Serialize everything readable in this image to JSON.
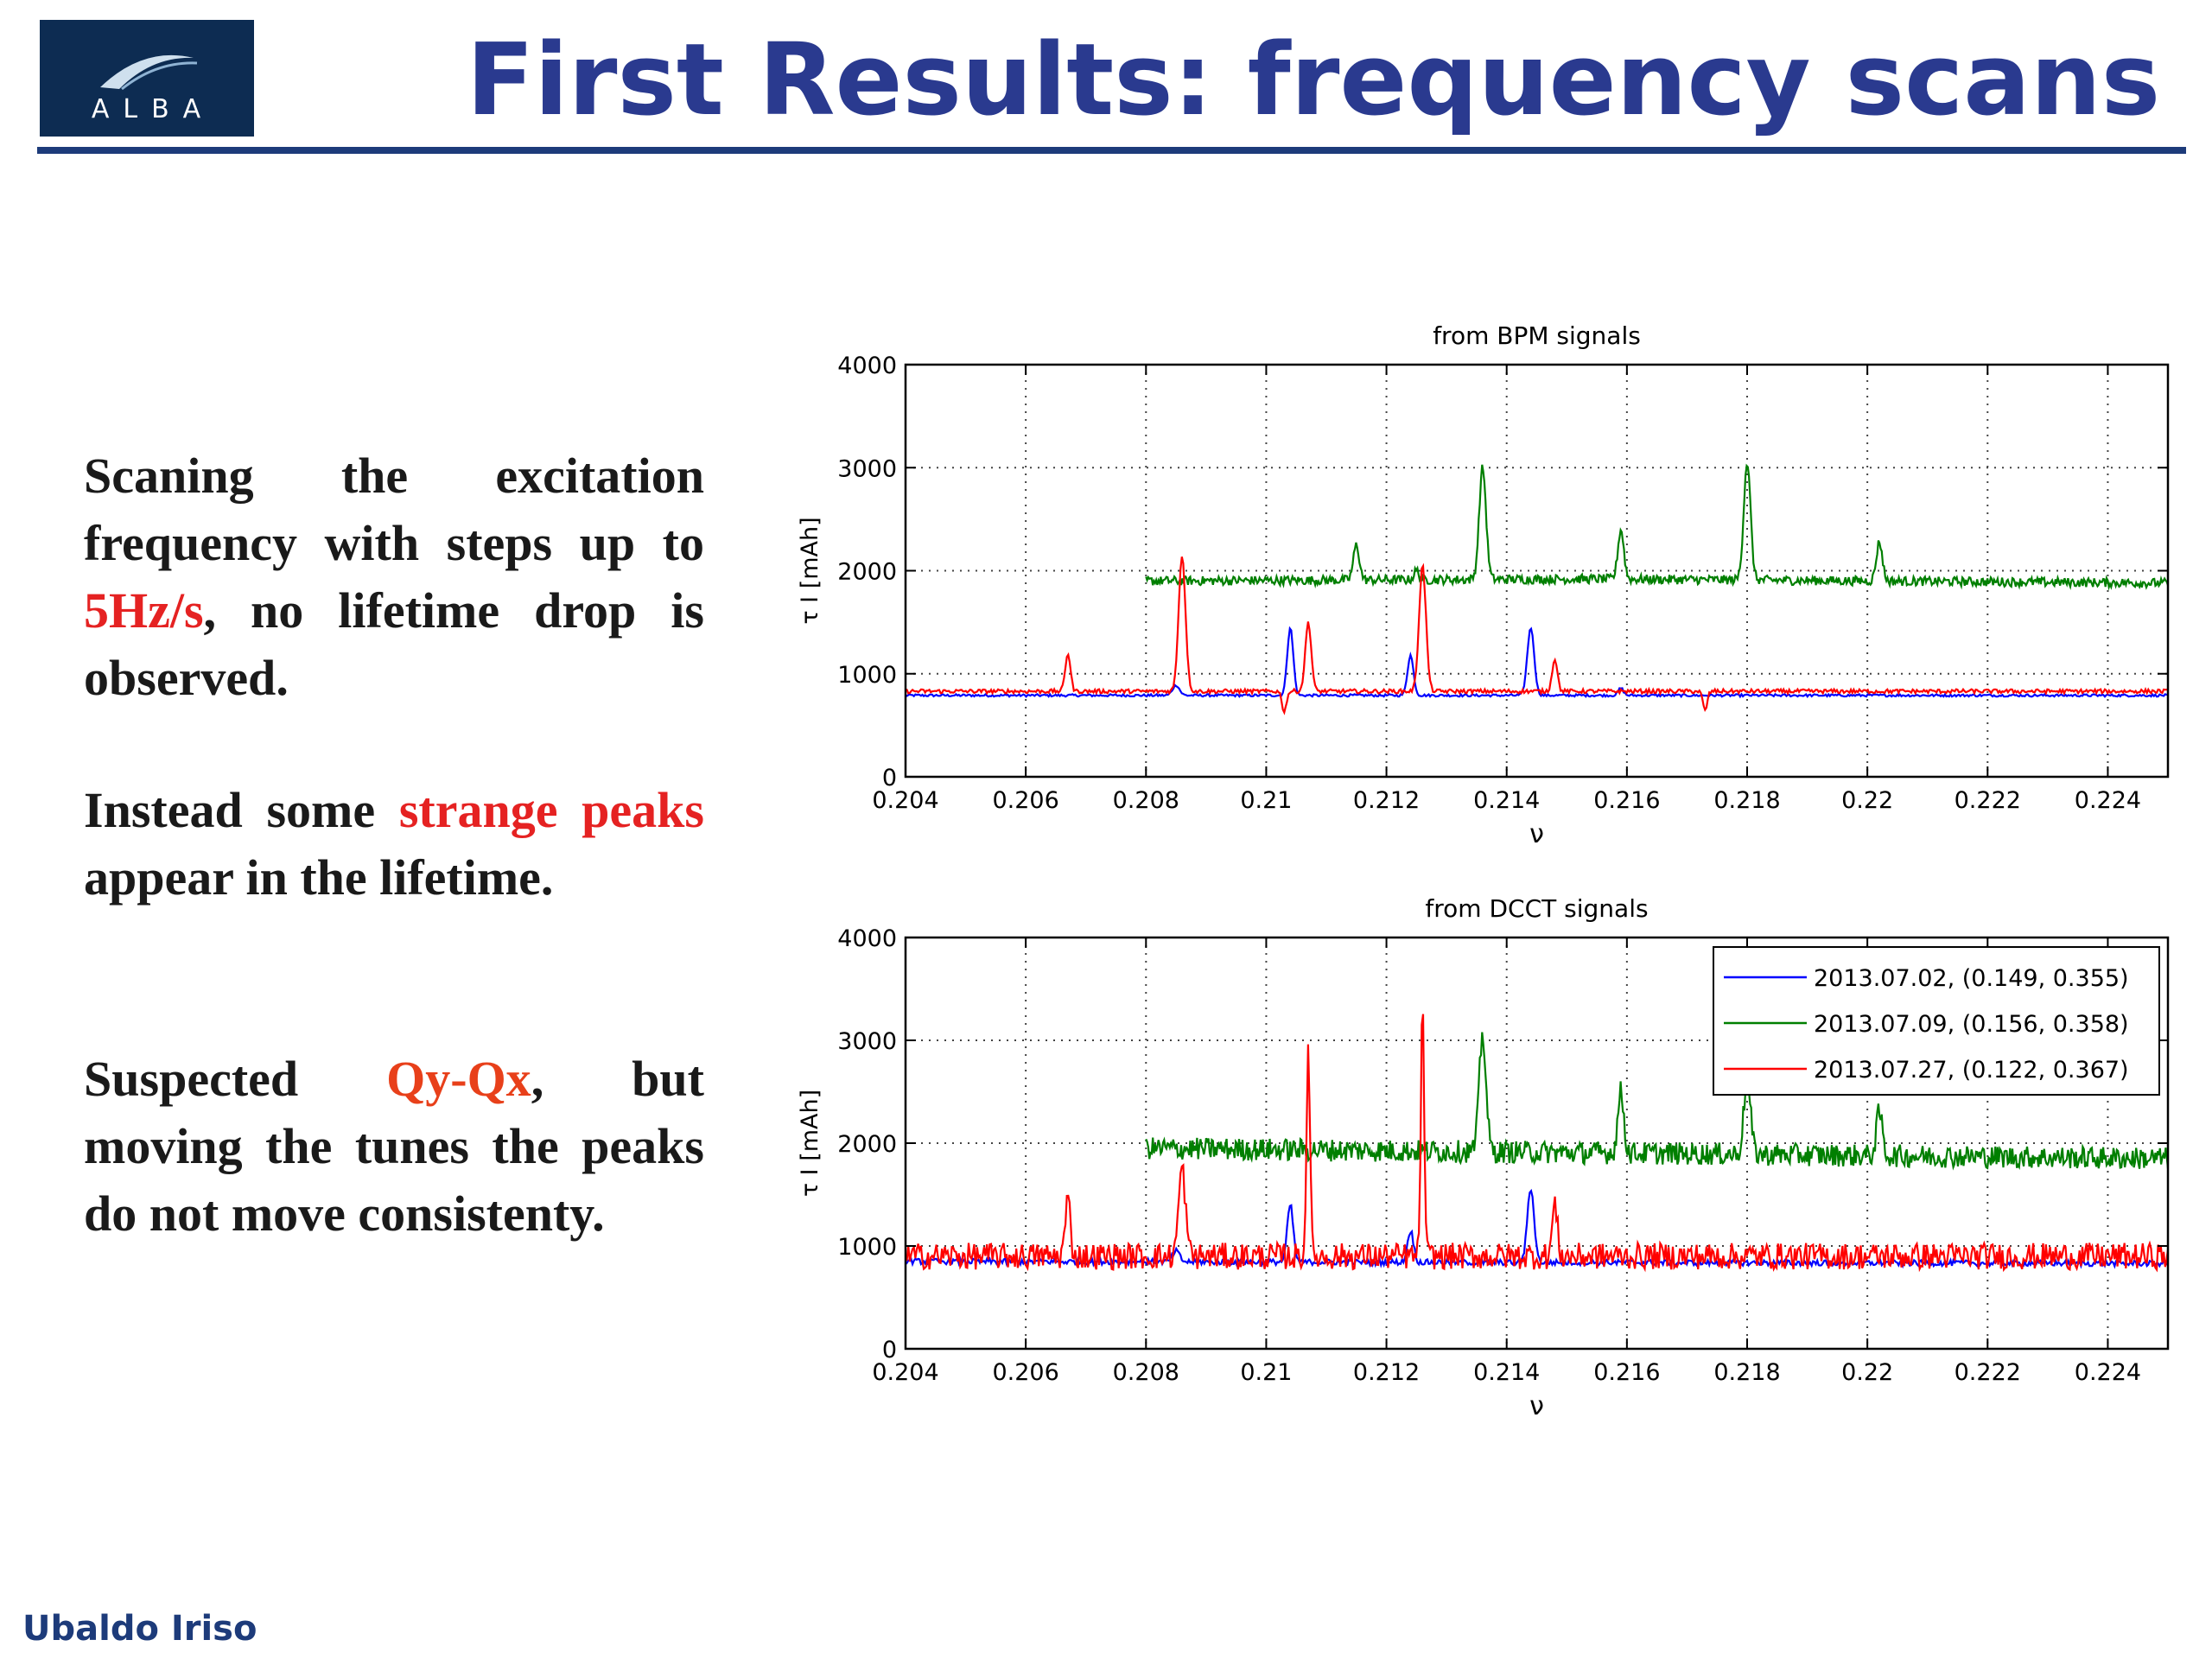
{
  "logo": {
    "text": "ALBA"
  },
  "title": "First Results: frequency scans",
  "paragraphs": {
    "p1": {
      "before": "Scaning the excitation frequency with steps up to ",
      "highlight": "5Hz/s",
      "after": ", no lifetime drop is observed."
    },
    "p2": {
      "before": "Instead some ",
      "highlight": "strange peaks",
      "after": " appear in the lifetime."
    },
    "p3": {
      "before": "Suspected ",
      "highlight": "Qy-Qx",
      "after": ", but moving the tunes the peaks do not move consistenty."
    }
  },
  "footer": {
    "author": "Ubaldo Iriso"
  },
  "colors": {
    "title": "#2a3a8f",
    "accent_red": "#e52222",
    "accent_orange": "#e8401a",
    "rule": "#1d3b7a",
    "logo_bg": "#0d2c52",
    "series_blue": "#0000ff",
    "series_green": "#007f00",
    "series_red": "#ff0000"
  },
  "chart_data": [
    {
      "type": "line",
      "title": "from BPM signals",
      "xlabel": "ν",
      "ylabel": "τ I [mAh]",
      "xlim": [
        0.204,
        0.225
      ],
      "ylim": [
        0,
        4000
      ],
      "xticks": [
        "0.204",
        "0.206",
        "0.208",
        "0.21",
        "0.212",
        "0.214",
        "0.216",
        "0.218",
        "0.22",
        "0.222",
        "0.224"
      ],
      "yticks": [
        "0",
        "1000",
        "2000",
        "3000",
        "4000"
      ],
      "grid": true,
      "series": [
        {
          "color": "#0000ff",
          "noise": 12,
          "x_start": 0.204,
          "baseline": [
            [
              0.204,
              790
            ],
            [
              0.225,
              790
            ]
          ],
          "peaks": [
            [
              0.2085,
              890,
              8e-05
            ],
            [
              0.2104,
              1450,
              7e-05
            ],
            [
              0.2124,
              1180,
              7e-05
            ],
            [
              0.2144,
              1450,
              8e-05
            ],
            [
              0.2159,
              860,
              6e-05
            ]
          ]
        },
        {
          "color": "#007f00",
          "noise": 45,
          "x_start": 0.208,
          "baseline": [
            [
              0.208,
              1900
            ],
            [
              0.2155,
              1920
            ],
            [
              0.225,
              1880
            ]
          ],
          "peaks": [
            [
              0.2115,
              2250,
              7e-05
            ],
            [
              0.2136,
              3000,
              8e-05
            ],
            [
              0.2159,
              2400,
              7e-05
            ],
            [
              0.218,
              3050,
              8e-05
            ],
            [
              0.2202,
              2280,
              7e-05
            ],
            [
              0.2125,
              2000,
              6e-05
            ]
          ]
        },
        {
          "color": "#ff0000",
          "noise": 20,
          "x_start": 0.204,
          "baseline": [
            [
              0.204,
              830
            ],
            [
              0.225,
              830
            ]
          ],
          "peaks": [
            [
              0.2067,
              1200,
              6e-05
            ],
            [
              0.2086,
              2150,
              8e-05
            ],
            [
              0.2107,
              1500,
              7e-05
            ],
            [
              0.2126,
              2050,
              8e-05
            ],
            [
              0.2148,
              1150,
              6e-05
            ]
          ],
          "dips": [
            [
              0.2103,
              630,
              5e-05
            ],
            [
              0.2173,
              640,
              5e-05
            ]
          ]
        }
      ]
    },
    {
      "type": "line",
      "title": "from DCCT signals",
      "xlabel": "ν",
      "ylabel": "τ I [mAh]",
      "xlim": [
        0.204,
        0.225
      ],
      "ylim": [
        0,
        4000
      ],
      "xticks": [
        "0.204",
        "0.206",
        "0.208",
        "0.21",
        "0.212",
        "0.214",
        "0.216",
        "0.218",
        "0.22",
        "0.222",
        "0.224"
      ],
      "yticks": [
        "0",
        "1000",
        "2000",
        "3000",
        "4000"
      ],
      "grid": true,
      "legend_position": "top-right",
      "series": [
        {
          "name": "2013.07.02, (0.149, 0.355)",
          "color": "#0000ff",
          "noise": 28,
          "x_start": 0.204,
          "baseline": [
            [
              0.204,
              850
            ],
            [
              0.225,
              830
            ]
          ],
          "peaks": [
            [
              0.2085,
              950,
              8e-05
            ],
            [
              0.2104,
              1400,
              7e-05
            ],
            [
              0.2124,
              1150,
              7e-05
            ],
            [
              0.2144,
              1560,
              8e-05
            ]
          ]
        },
        {
          "name": "2013.07.09, (0.156, 0.358)",
          "color": "#007f00",
          "noise": 110,
          "x_start": 0.208,
          "baseline": [
            [
              0.208,
              1950
            ],
            [
              0.225,
              1850
            ]
          ],
          "peaks": [
            [
              0.2136,
              3050,
              8e-05
            ],
            [
              0.2159,
              2500,
              7e-05
            ],
            [
              0.218,
              2600,
              8e-05
            ],
            [
              0.2202,
              2300,
              7e-05
            ]
          ]
        },
        {
          "name": "2013.07.27, (0.122, 0.367)",
          "color": "#ff0000",
          "noise": 130,
          "x_start": 0.204,
          "baseline": [
            [
              0.204,
              900
            ],
            [
              0.225,
              900
            ]
          ],
          "peaks": [
            [
              0.2067,
              1450,
              6e-05
            ],
            [
              0.2086,
              1750,
              8e-05
            ],
            [
              0.2107,
              3000,
              4e-05
            ],
            [
              0.2126,
              3300,
              4e-05
            ],
            [
              0.2148,
              1400,
              6e-05
            ]
          ]
        }
      ]
    }
  ]
}
